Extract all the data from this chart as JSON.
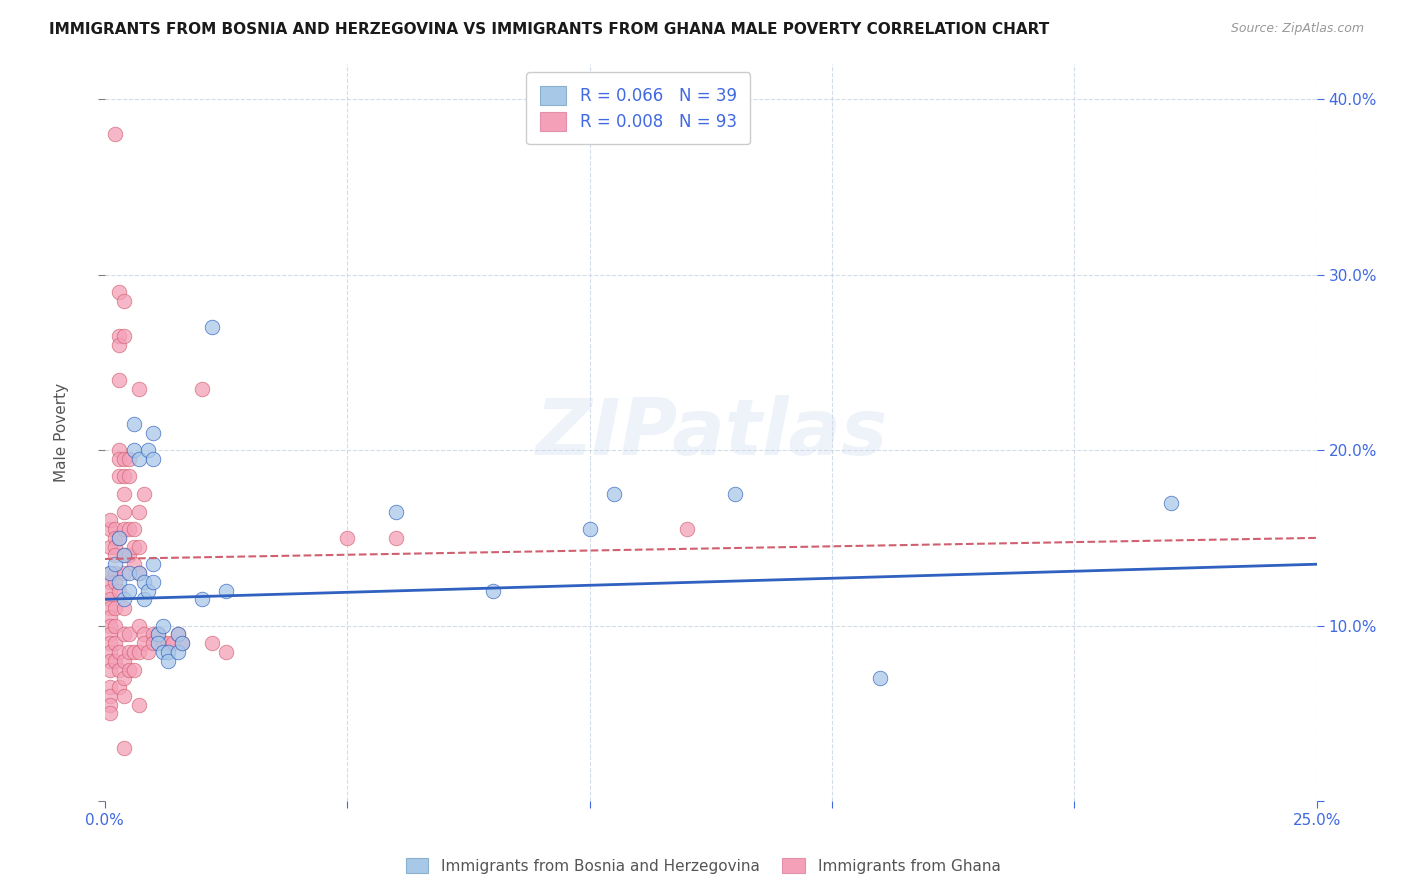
{
  "title": "IMMIGRANTS FROM BOSNIA AND HERZEGOVINA VS IMMIGRANTS FROM GHANA MALE POVERTY CORRELATION CHART",
  "source": "Source: ZipAtlas.com",
  "xlabel_blue": "Immigrants from Bosnia and Herzegovina",
  "xlabel_pink": "Immigrants from Ghana",
  "ylabel": "Male Poverty",
  "legend_blue": {
    "R": "0.066",
    "N": "39"
  },
  "legend_pink": {
    "R": "0.008",
    "N": "93"
  },
  "xlim": [
    0.0,
    0.25
  ],
  "ylim": [
    0.0,
    0.42
  ],
  "xticks": [
    0.0,
    0.05,
    0.1,
    0.15,
    0.2,
    0.25
  ],
  "yticks": [
    0.0,
    0.1,
    0.2,
    0.3,
    0.4
  ],
  "color_blue": "#a8c8e8",
  "color_pink": "#f4a0b8",
  "trendline_blue": "#3060c0",
  "trendline_pink": "#d06070",
  "background": "#ffffff",
  "watermark": "ZIPatlas",
  "blue_scatter": [
    [
      0.001,
      0.13
    ],
    [
      0.002,
      0.135
    ],
    [
      0.003,
      0.15
    ],
    [
      0.003,
      0.125
    ],
    [
      0.004,
      0.14
    ],
    [
      0.004,
      0.115
    ],
    [
      0.005,
      0.13
    ],
    [
      0.005,
      0.12
    ],
    [
      0.006,
      0.2
    ],
    [
      0.006,
      0.215
    ],
    [
      0.007,
      0.195
    ],
    [
      0.007,
      0.13
    ],
    [
      0.008,
      0.125
    ],
    [
      0.008,
      0.115
    ],
    [
      0.009,
      0.2
    ],
    [
      0.009,
      0.12
    ],
    [
      0.01,
      0.21
    ],
    [
      0.01,
      0.195
    ],
    [
      0.01,
      0.135
    ],
    [
      0.01,
      0.125
    ],
    [
      0.011,
      0.095
    ],
    [
      0.011,
      0.09
    ],
    [
      0.012,
      0.085
    ],
    [
      0.012,
      0.1
    ],
    [
      0.013,
      0.085
    ],
    [
      0.013,
      0.08
    ],
    [
      0.015,
      0.095
    ],
    [
      0.015,
      0.085
    ],
    [
      0.016,
      0.09
    ],
    [
      0.02,
      0.115
    ],
    [
      0.022,
      0.27
    ],
    [
      0.025,
      0.12
    ],
    [
      0.06,
      0.165
    ],
    [
      0.08,
      0.12
    ],
    [
      0.1,
      0.155
    ],
    [
      0.105,
      0.175
    ],
    [
      0.13,
      0.175
    ],
    [
      0.16,
      0.07
    ],
    [
      0.22,
      0.17
    ]
  ],
  "pink_scatter": [
    [
      0.001,
      0.155
    ],
    [
      0.001,
      0.16
    ],
    [
      0.001,
      0.145
    ],
    [
      0.001,
      0.13
    ],
    [
      0.001,
      0.125
    ],
    [
      0.001,
      0.12
    ],
    [
      0.001,
      0.115
    ],
    [
      0.001,
      0.11
    ],
    [
      0.001,
      0.105
    ],
    [
      0.001,
      0.1
    ],
    [
      0.001,
      0.095
    ],
    [
      0.001,
      0.09
    ],
    [
      0.001,
      0.085
    ],
    [
      0.001,
      0.08
    ],
    [
      0.001,
      0.075
    ],
    [
      0.001,
      0.065
    ],
    [
      0.001,
      0.06
    ],
    [
      0.001,
      0.055
    ],
    [
      0.001,
      0.05
    ],
    [
      0.002,
      0.38
    ],
    [
      0.002,
      0.155
    ],
    [
      0.002,
      0.15
    ],
    [
      0.002,
      0.145
    ],
    [
      0.002,
      0.14
    ],
    [
      0.002,
      0.13
    ],
    [
      0.002,
      0.125
    ],
    [
      0.002,
      0.11
    ],
    [
      0.002,
      0.1
    ],
    [
      0.002,
      0.09
    ],
    [
      0.002,
      0.08
    ],
    [
      0.003,
      0.29
    ],
    [
      0.003,
      0.265
    ],
    [
      0.003,
      0.26
    ],
    [
      0.003,
      0.24
    ],
    [
      0.003,
      0.2
    ],
    [
      0.003,
      0.195
    ],
    [
      0.003,
      0.185
    ],
    [
      0.003,
      0.15
    ],
    [
      0.003,
      0.12
    ],
    [
      0.003,
      0.085
    ],
    [
      0.003,
      0.075
    ],
    [
      0.003,
      0.065
    ],
    [
      0.004,
      0.285
    ],
    [
      0.004,
      0.265
    ],
    [
      0.004,
      0.195
    ],
    [
      0.004,
      0.185
    ],
    [
      0.004,
      0.175
    ],
    [
      0.004,
      0.165
    ],
    [
      0.004,
      0.155
    ],
    [
      0.004,
      0.14
    ],
    [
      0.004,
      0.13
    ],
    [
      0.004,
      0.11
    ],
    [
      0.004,
      0.095
    ],
    [
      0.004,
      0.08
    ],
    [
      0.004,
      0.07
    ],
    [
      0.004,
      0.06
    ],
    [
      0.004,
      0.03
    ],
    [
      0.005,
      0.195
    ],
    [
      0.005,
      0.185
    ],
    [
      0.005,
      0.155
    ],
    [
      0.005,
      0.14
    ],
    [
      0.005,
      0.095
    ],
    [
      0.005,
      0.085
    ],
    [
      0.005,
      0.075
    ],
    [
      0.006,
      0.155
    ],
    [
      0.006,
      0.145
    ],
    [
      0.006,
      0.135
    ],
    [
      0.006,
      0.085
    ],
    [
      0.006,
      0.075
    ],
    [
      0.007,
      0.235
    ],
    [
      0.007,
      0.165
    ],
    [
      0.007,
      0.145
    ],
    [
      0.007,
      0.13
    ],
    [
      0.007,
      0.1
    ],
    [
      0.007,
      0.085
    ],
    [
      0.007,
      0.055
    ],
    [
      0.008,
      0.175
    ],
    [
      0.008,
      0.095
    ],
    [
      0.008,
      0.09
    ],
    [
      0.009,
      0.085
    ],
    [
      0.01,
      0.095
    ],
    [
      0.01,
      0.09
    ],
    [
      0.011,
      0.095
    ],
    [
      0.012,
      0.09
    ],
    [
      0.013,
      0.09
    ],
    [
      0.014,
      0.09
    ],
    [
      0.015,
      0.095
    ],
    [
      0.016,
      0.09
    ],
    [
      0.02,
      0.235
    ],
    [
      0.022,
      0.09
    ],
    [
      0.025,
      0.085
    ],
    [
      0.05,
      0.15
    ],
    [
      0.06,
      0.15
    ],
    [
      0.12,
      0.155
    ]
  ],
  "blue_trend_x": [
    0.0,
    0.25
  ],
  "blue_trend_y": [
    0.115,
    0.135
  ],
  "pink_trend_x": [
    0.0,
    0.25
  ],
  "pink_trend_y": [
    0.138,
    0.15
  ]
}
